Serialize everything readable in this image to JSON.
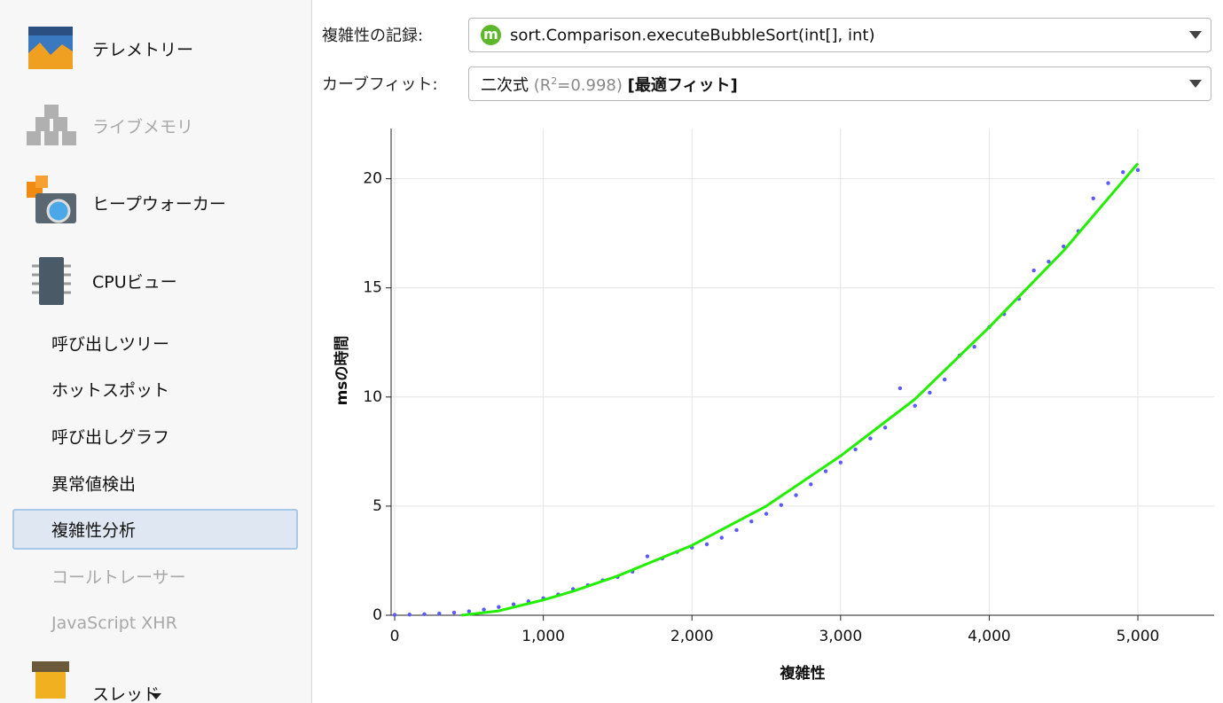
{
  "sidebar": {
    "items": [
      {
        "label": "テレメトリー",
        "enabled": true
      },
      {
        "label": "ライブメモリ",
        "enabled": false
      },
      {
        "label": "ヒープウォーカー",
        "enabled": true
      },
      {
        "label": "CPUビュー",
        "enabled": true
      }
    ],
    "sub_items": [
      {
        "label": "呼び出しツリー",
        "enabled": true,
        "selected": false
      },
      {
        "label": "ホットスポット",
        "enabled": true,
        "selected": false
      },
      {
        "label": "呼び出しグラフ",
        "enabled": true,
        "selected": false
      },
      {
        "label": "異常値検出",
        "enabled": true,
        "selected": false
      },
      {
        "label": "複雑性分析",
        "enabled": true,
        "selected": true
      },
      {
        "label": "コールトレーサー",
        "enabled": false,
        "selected": false
      },
      {
        "label": "JavaScript XHR",
        "enabled": false,
        "selected": false
      }
    ],
    "last_item": {
      "label": "スレッド",
      "enabled": true
    }
  },
  "controls": {
    "recording": {
      "label": "複雑性の記録:",
      "icon": "m",
      "value": "sort.Comparison.executeBubbleSort(int[], int)"
    },
    "curve_fit": {
      "label": "カーブフィット:",
      "name": "二次式",
      "r2_prefix": "(R",
      "r2_sup": "2",
      "r2_value": "=0.998)",
      "tag": "[最適フィット]"
    }
  },
  "chart_data": {
    "type": "scatter",
    "xlabel": "複雑性",
    "ylabel": "msの時間",
    "xlim": [
      -24,
      5513
    ],
    "ylim": [
      0,
      22.3
    ],
    "xticks": [
      0,
      {
        "value": 1000,
        "label": "1,000"
      },
      {
        "value": 2000,
        "label": "2,000"
      },
      {
        "value": 3000,
        "label": "3,000"
      },
      {
        "value": 4000,
        "label": "4,000"
      },
      {
        "value": 5000,
        "label": "5,000"
      }
    ],
    "yticks": [
      0,
      5,
      10,
      15,
      20
    ],
    "grid": true,
    "series": [
      {
        "type": "scatter",
        "color": "#5a5aff",
        "x": [
          0,
          100,
          200,
          300,
          400,
          500,
          600,
          700,
          800,
          900,
          1000,
          1100,
          1200,
          1300,
          1400,
          1500,
          1600,
          1700,
          1800,
          1900,
          2000,
          2100,
          2200,
          2300,
          2400,
          2500,
          2600,
          2700,
          2800,
          2900,
          3000,
          3100,
          3200,
          3300,
          3400,
          3500,
          3600,
          3700,
          3800,
          3900,
          4000,
          4100,
          4200,
          4300,
          4400,
          4500,
          4600,
          4700,
          4800,
          4900,
          5000
        ],
        "values": [
          0.02,
          0.03,
          0.05,
          0.08,
          0.12,
          0.18,
          0.26,
          0.38,
          0.5,
          0.64,
          0.78,
          0.95,
          1.2,
          1.38,
          1.6,
          1.75,
          2.0,
          2.7,
          2.6,
          2.9,
          3.1,
          3.25,
          3.55,
          3.9,
          4.3,
          4.65,
          5.05,
          5.5,
          6.0,
          6.6,
          7.0,
          7.6,
          8.1,
          8.6,
          10.4,
          9.6,
          10.2,
          10.8,
          11.9,
          12.3,
          13.2,
          13.8,
          14.5,
          15.8,
          16.2,
          16.9,
          17.6,
          19.1,
          19.8,
          20.3,
          20.4
        ]
      },
      {
        "type": "line",
        "color": "#22ee00",
        "x": [
          450,
          700,
          1000,
          1200,
          1500,
          2000,
          2500,
          3000,
          3500,
          4000,
          4500,
          5000
        ],
        "values": [
          0,
          0.2,
          0.7,
          1.1,
          1.8,
          3.2,
          5.0,
          7.3,
          9.9,
          13.2,
          16.7,
          20.7
        ]
      }
    ]
  }
}
